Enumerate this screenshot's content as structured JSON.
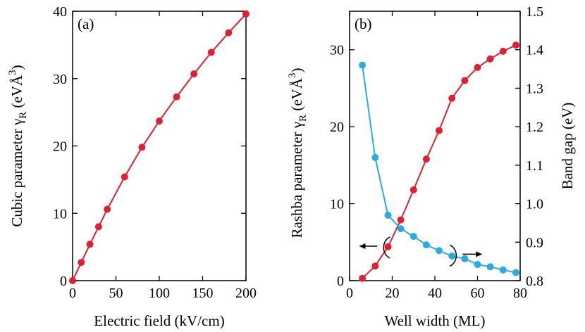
{
  "chart_data": [
    {
      "type": "line",
      "panel_label": "(a)",
      "xlabel": "Electric field (kV/cm)",
      "ylabel": {
        "prefix": "Cubic parameter ",
        "symbol": "γ",
        "subscript": "R",
        "unit_open": " (eVÅ",
        "superscript": "3",
        "unit_close": ")"
      },
      "xlim": [
        0,
        200
      ],
      "ylim": [
        0,
        40
      ],
      "xticks": [
        "0",
        "50",
        "100",
        "150",
        "200"
      ],
      "yticks": [
        "0",
        "10",
        "20",
        "30",
        "40"
      ],
      "series": [
        {
          "name": "Cubic parameter",
          "color": "#e02030",
          "x": [
            0,
            10,
            20,
            30,
            40,
            60,
            80,
            100,
            120,
            140,
            160,
            180,
            200
          ],
          "y": [
            0,
            2.7,
            5.4,
            8.0,
            10.6,
            15.4,
            19.8,
            23.7,
            27.3,
            30.7,
            33.9,
            36.8,
            39.6
          ]
        }
      ]
    },
    {
      "type": "line",
      "panel_label": "(b)",
      "xlabel": "Well width (ML)",
      "ylabel_left": {
        "prefix": "Rashba parameter ",
        "symbol": "γ",
        "subscript": "R",
        "unit_open": " (eVÅ",
        "superscript": "3",
        "unit_close": ")"
      },
      "ylabel_right": "Band gap (eV)",
      "xlim": [
        0,
        80
      ],
      "ylim_left": [
        0,
        35
      ],
      "ylim_right": [
        0.8,
        1.5
      ],
      "xticks": [
        "0",
        "20",
        "40",
        "60",
        "80"
      ],
      "yticks_left": [
        "0",
        "10",
        "20",
        "30"
      ],
      "yticks_right": [
        "0.8",
        "0.9",
        "1.0",
        "1.1",
        "1.2",
        "1.3",
        "1.4",
        "1.5"
      ],
      "series": [
        {
          "name": "Rashba parameter",
          "axis": "left",
          "color": "#e02030",
          "x": [
            6,
            12,
            18,
            24,
            30,
            36,
            42,
            48,
            54,
            60,
            66,
            72,
            78
          ],
          "y": [
            0.3,
            1.9,
            4.4,
            7.9,
            11.8,
            15.8,
            19.5,
            23.7,
            26.0,
            27.7,
            28.8,
            29.8,
            30.6
          ]
        },
        {
          "name": "Band gap",
          "axis": "right",
          "color": "#29abe2",
          "x": [
            6,
            12,
            18,
            24,
            30,
            36,
            42,
            48,
            54,
            60,
            66,
            72,
            78
          ],
          "y": [
            1.36,
            1.12,
            0.97,
            0.935,
            0.915,
            0.893,
            0.878,
            0.864,
            0.857,
            0.842,
            0.836,
            0.828,
            0.821
          ]
        }
      ],
      "annotations": [
        {
          "type": "arrow",
          "direction": "left",
          "label": "points to left axis (Rashba)"
        },
        {
          "type": "arrow",
          "direction": "right",
          "label": "points to right axis (Band gap)"
        }
      ]
    }
  ]
}
